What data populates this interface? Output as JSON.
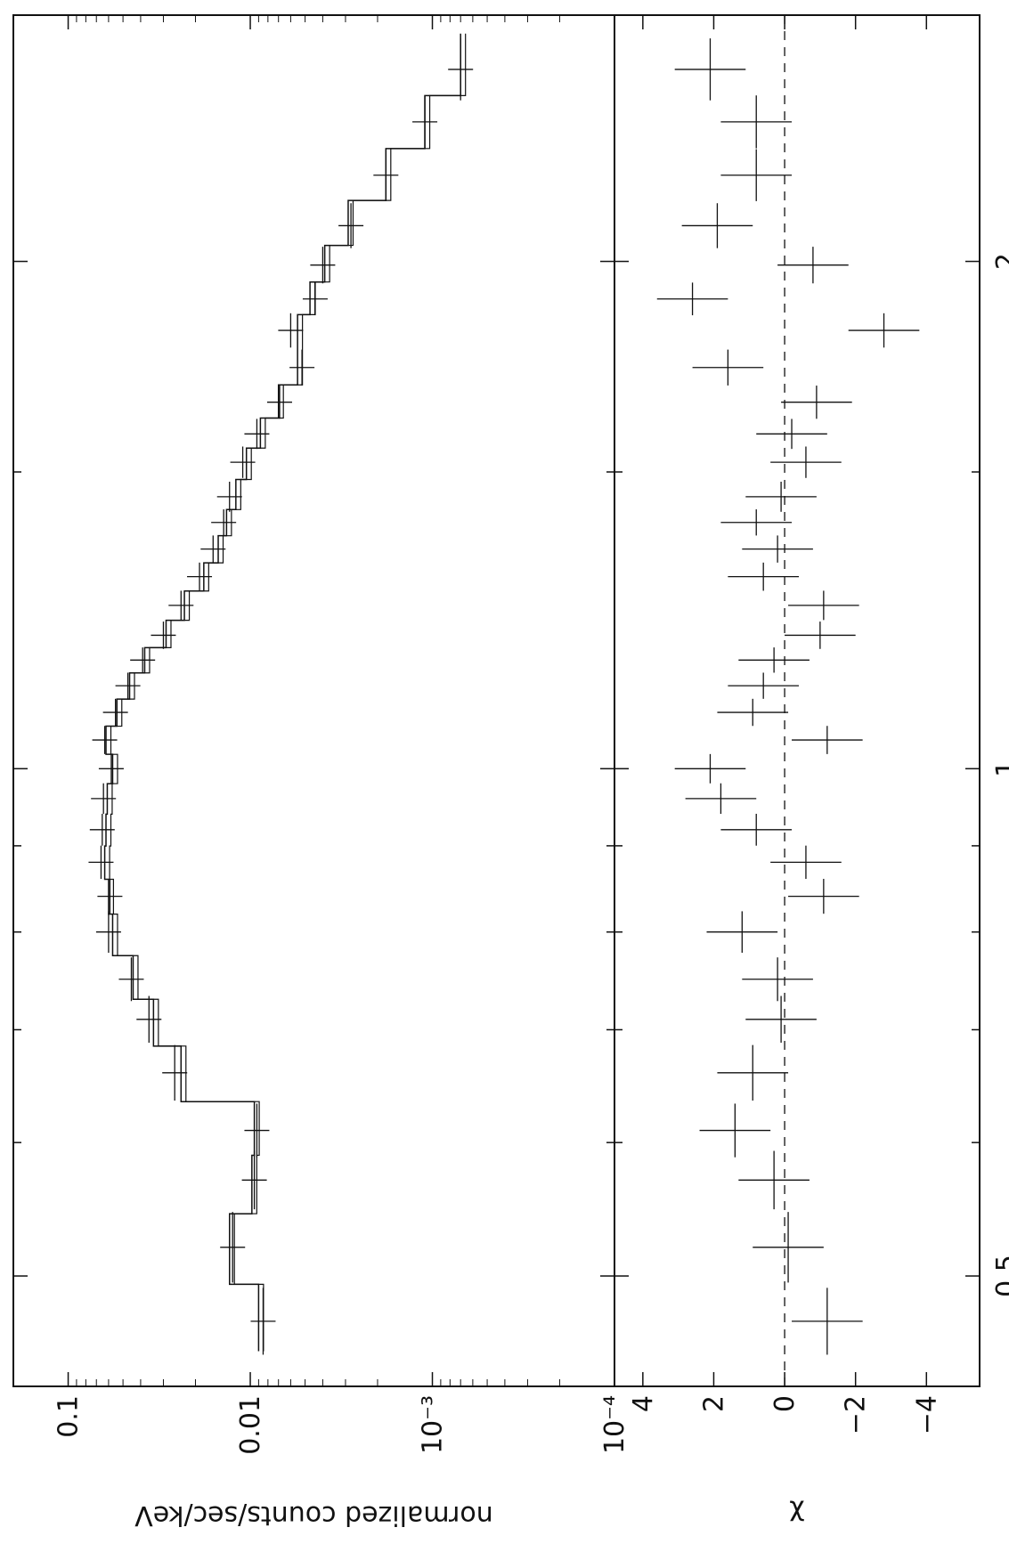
{
  "chart_data": [
    {
      "type": "scatter",
      "description_role": "spectrum",
      "x": [
        0.47,
        0.52,
        0.57,
        0.61,
        0.66,
        0.71,
        0.75,
        0.8,
        0.84,
        0.88,
        0.92,
        0.96,
        1.0,
        1.04,
        1.08,
        1.12,
        1.16,
        1.2,
        1.25,
        1.3,
        1.35,
        1.4,
        1.45,
        1.52,
        1.58,
        1.65,
        1.73,
        1.82,
        1.9,
        1.99,
        2.1,
        2.25,
        2.42,
        2.6
      ],
      "y": [
        0.0085,
        0.0125,
        0.0095,
        0.0092,
        0.026,
        0.036,
        0.045,
        0.06,
        0.059,
        0.066,
        0.065,
        0.064,
        0.058,
        0.063,
        0.055,
        0.047,
        0.039,
        0.03,
        0.024,
        0.019,
        0.016,
        0.014,
        0.013,
        0.011,
        0.0092,
        0.0069,
        0.0052,
        0.006,
        0.0044,
        0.004,
        0.0028,
        0.0018,
        0.0011,
        0.0007
      ],
      "model": [
        0.009,
        0.013,
        0.0098,
        0.0095,
        0.024,
        0.034,
        0.044,
        0.057,
        0.06,
        0.063,
        0.062,
        0.061,
        0.057,
        0.062,
        0.054,
        0.046,
        0.038,
        0.029,
        0.023,
        0.018,
        0.015,
        0.0135,
        0.012,
        0.0105,
        0.0088,
        0.007,
        0.0055,
        0.0055,
        0.0047,
        0.0039,
        0.0029,
        0.0018,
        0.0011,
        0.0007
      ],
      "ylabel": "normalized counts/sec/keV",
      "yscale": "log",
      "xscale": "log",
      "ylim": [
        0.0001,
        0.2
      ],
      "xlim": [
        0.43,
        2.8
      ],
      "ytick_labels": [
        "0.1",
        "0.01",
        "10⁻³",
        "10⁻⁴"
      ],
      "xtick_labels": [
        "0.5",
        "1",
        "2"
      ]
    },
    {
      "type": "scatter",
      "description_role": "residuals",
      "x": [
        0.47,
        0.52,
        0.57,
        0.61,
        0.66,
        0.71,
        0.75,
        0.8,
        0.84,
        0.88,
        0.92,
        0.96,
        1.0,
        1.04,
        1.08,
        1.12,
        1.16,
        1.2,
        1.25,
        1.3,
        1.35,
        1.4,
        1.45,
        1.52,
        1.58,
        1.65,
        1.73,
        1.82,
        1.9,
        1.99,
        2.1,
        2.25,
        2.42,
        2.6
      ],
      "y": [
        -1.2,
        -0.1,
        0.3,
        1.4,
        0.9,
        0.1,
        0.2,
        1.2,
        -1.1,
        -0.6,
        0.8,
        1.8,
        2.1,
        -1.2,
        0.9,
        0.6,
        0.3,
        -1.0,
        -1.1,
        0.6,
        0.2,
        0.8,
        0.1,
        -0.6,
        -0.2,
        -0.9,
        1.6,
        -2.8,
        2.6,
        -0.8,
        1.9,
        0.8,
        0.8,
        2.1
      ],
      "ylabel": "χ",
      "ylim": [
        -5.5,
        4.8
      ],
      "ytick_labels": [
        "4",
        "2",
        "0",
        "−2",
        "−4"
      ],
      "reference_line": 0
    }
  ]
}
